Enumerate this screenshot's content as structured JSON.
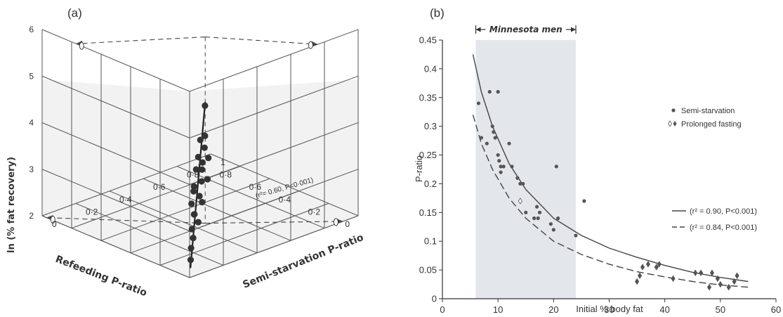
{
  "chart_data": [
    {
      "panel_label": "(a)",
      "type": "scatter",
      "projection": "3d",
      "xlabel": "Refeeding P-ratio",
      "ylabel": "Semi-starvation P-ratio",
      "zlabel": "ln   (% fat recovery)",
      "xlim": [
        0,
        1
      ],
      "ylim": [
        0,
        1
      ],
      "zlim": [
        2,
        6
      ],
      "x_ticks": [
        "0",
        "0·2",
        "0·4",
        "0·6",
        "0·8",
        "1"
      ],
      "y_ticks": [
        "0",
        "0·2",
        "0·4",
        "0·6",
        "0·8",
        "1"
      ],
      "z_ticks": [
        "2",
        "3",
        "4",
        "5",
        "6"
      ],
      "annotation": "(r²= 0.60, P<0·001)",
      "points": [
        {
          "x": 0.13,
          "y": 0.12,
          "z": 2.05
        },
        {
          "x": 0.15,
          "y": 0.14,
          "z": 2.25
        },
        {
          "x": 0.17,
          "y": 0.17,
          "z": 2.4
        },
        {
          "x": 0.19,
          "y": 0.18,
          "z": 2.55
        },
        {
          "x": 0.17,
          "y": 0.2,
          "z": 2.7
        },
        {
          "x": 0.21,
          "y": 0.21,
          "z": 2.8
        },
        {
          "x": 0.23,
          "y": 0.23,
          "z": 2.75
        },
        {
          "x": 0.25,
          "y": 0.23,
          "z": 2.95
        },
        {
          "x": 0.19,
          "y": 0.24,
          "z": 3.05
        },
        {
          "x": 0.23,
          "y": 0.26,
          "z": 3.1
        },
        {
          "x": 0.27,
          "y": 0.26,
          "z": 3.15
        },
        {
          "x": 0.29,
          "y": 0.28,
          "z": 3.2
        },
        {
          "x": 0.25,
          "y": 0.29,
          "z": 3.35
        },
        {
          "x": 0.21,
          "y": 0.29,
          "z": 3.45
        },
        {
          "x": 0.31,
          "y": 0.31,
          "z": 3.5
        },
        {
          "x": 0.27,
          "y": 0.31,
          "z": 3.55
        },
        {
          "x": 0.29,
          "y": 0.33,
          "z": 3.65
        },
        {
          "x": 0.33,
          "y": 0.34,
          "z": 3.7
        },
        {
          "x": 0.25,
          "y": 0.33,
          "z": 3.8
        },
        {
          "x": 0.31,
          "y": 0.36,
          "z": 3.9
        },
        {
          "x": 0.35,
          "y": 0.37,
          "z": 4.0
        },
        {
          "x": 0.33,
          "y": 0.38,
          "z": 4.1
        },
        {
          "x": 0.41,
          "y": 0.45,
          "z": 4.55
        }
      ],
      "fit_line": [
        {
          "x": 0.12,
          "y": 0.11,
          "z": 1.9
        },
        {
          "x": 0.42,
          "y": 0.46,
          "z": 4.6
        }
      ],
      "projection_points": [
        {
          "x": 0.42,
          "y": 0.46,
          "z": 6.0
        },
        {
          "x": 0.42,
          "y": 0.46,
          "z": 2.0
        }
      ]
    },
    {
      "panel_label": "(b)",
      "type": "scatter",
      "xlabel": "Initial % body fat",
      "ylabel": "P-ratio",
      "xlim": [
        0,
        60
      ],
      "ylim": [
        0,
        0.45
      ],
      "x_ticks": [
        0,
        10,
        20,
        30,
        40,
        50,
        60
      ],
      "y_ticks": [
        0,
        0.05,
        0.1,
        0.15,
        0.2,
        0.25,
        0.3,
        0.35,
        0.4,
        0.45
      ],
      "shaded_region": {
        "x": [
          6,
          24
        ],
        "label": "Minnesota men"
      },
      "legend": {
        "position": "right",
        "entries": [
          "Semi-starvation",
          "Prolonged fasting"
        ]
      },
      "fit_legend": [
        {
          "style": "solid",
          "label": "(r² = 0.90,  P<0.001)"
        },
        {
          "style": "dashed",
          "label": "(r² = 0.84,  P<0.001)"
        }
      ],
      "series": [
        {
          "name": "Semi-starvation",
          "marker": "dot",
          "points": [
            [
              6.5,
              0.34
            ],
            [
              7,
              0.28
            ],
            [
              8,
              0.27
            ],
            [
              8.5,
              0.36
            ],
            [
              9,
              0.3
            ],
            [
              9.2,
              0.29
            ],
            [
              9.5,
              0.28
            ],
            [
              10,
              0.36
            ],
            [
              10,
              0.25
            ],
            [
              10.2,
              0.24
            ],
            [
              10.5,
              0.23
            ],
            [
              10.5,
              0.22
            ],
            [
              11,
              0.23
            ],
            [
              12,
              0.27
            ],
            [
              12.5,
              0.23
            ],
            [
              13.5,
              0.21
            ],
            [
              14,
              0.2
            ],
            [
              14.5,
              0.2
            ],
            [
              15,
              0.15
            ],
            [
              16.5,
              0.14
            ],
            [
              17,
              0.16
            ],
            [
              17.2,
              0.14
            ],
            [
              17.5,
              0.15
            ],
            [
              19.5,
              0.13
            ],
            [
              20,
              0.12
            ],
            [
              20.5,
              0.23
            ],
            [
              20.8,
              0.14
            ],
            [
              24,
              0.11
            ],
            [
              25.5,
              0.17
            ]
          ]
        },
        {
          "name": "Prolonged fasting",
          "marker": "diamond",
          "points": [
            [
              14,
              0.17
            ],
            [
              35,
              0.03
            ],
            [
              35.5,
              0.04
            ],
            [
              36,
              0.055
            ],
            [
              37,
              0.06
            ],
            [
              38.5,
              0.055
            ],
            [
              39,
              0.06
            ],
            [
              41.5,
              0.035
            ],
            [
              45.5,
              0.045
            ],
            [
              46.5,
              0.045
            ],
            [
              48,
              0.02
            ],
            [
              48.5,
              0.045
            ],
            [
              49.5,
              0.035
            ],
            [
              50,
              0.025
            ],
            [
              51.5,
              0.02
            ],
            [
              52.5,
              0.03
            ],
            [
              53,
              0.04
            ]
          ]
        }
      ],
      "fit_curves": [
        {
          "style": "solid",
          "points": [
            [
              5.5,
              0.425
            ],
            [
              7,
              0.36
            ],
            [
              9,
              0.3
            ],
            [
              12,
              0.235
            ],
            [
              15,
              0.19
            ],
            [
              20,
              0.14
            ],
            [
              25,
              0.11
            ],
            [
              30,
              0.088
            ],
            [
              35,
              0.072
            ],
            [
              40,
              0.058
            ],
            [
              45,
              0.046
            ],
            [
              50,
              0.037
            ],
            [
              55,
              0.03
            ]
          ]
        },
        {
          "style": "dashed",
          "points": [
            [
              5.5,
              0.32
            ],
            [
              7,
              0.27
            ],
            [
              9,
              0.225
            ],
            [
              12,
              0.175
            ],
            [
              15,
              0.14
            ],
            [
              20,
              0.1
            ],
            [
              25,
              0.077
            ],
            [
              30,
              0.06
            ],
            [
              35,
              0.047
            ],
            [
              40,
              0.038
            ],
            [
              45,
              0.03
            ],
            [
              50,
              0.024
            ],
            [
              55,
              0.02
            ]
          ]
        }
      ]
    }
  ]
}
